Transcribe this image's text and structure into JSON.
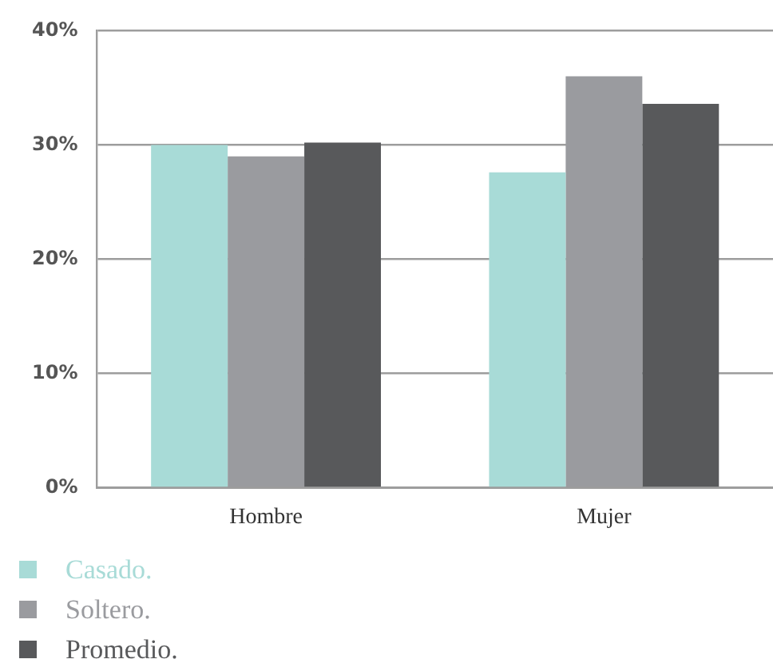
{
  "chart_data": {
    "type": "bar",
    "categories": [
      "Hombre",
      "Mujer"
    ],
    "series": [
      {
        "name": "Casado.",
        "color": "#a8dbd7",
        "values": [
          30,
          27.6
        ]
      },
      {
        "name": "Soltero.",
        "color": "#9a9b9f",
        "values": [
          29,
          36
        ]
      },
      {
        "name": "Promedio.",
        "color": "#58595b",
        "values": [
          30.2,
          33.6
        ]
      }
    ],
    "ylim": [
      0,
      40
    ],
    "yticks": [
      {
        "value": 0,
        "label": "0%"
      },
      {
        "value": 10,
        "label": "10%"
      },
      {
        "value": 20,
        "label": "20%"
      },
      {
        "value": 30,
        "label": "30%"
      },
      {
        "value": 40,
        "label": "40%"
      }
    ],
    "grid": "y",
    "legend": "bottom left"
  }
}
